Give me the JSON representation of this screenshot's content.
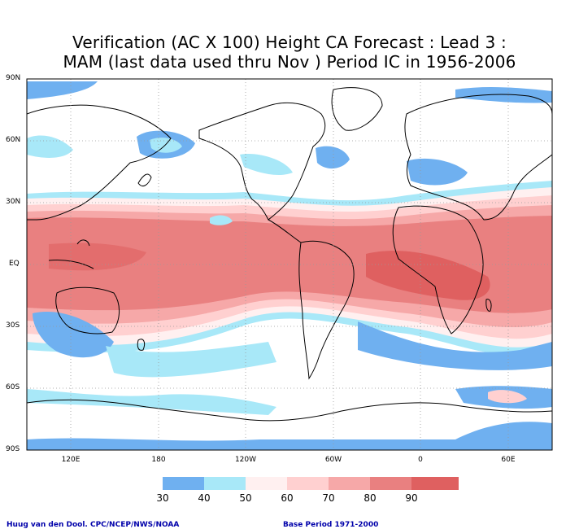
{
  "title": {
    "line1": "Verification (AC X 100) Height CA Forecast : Lead 3 :",
    "line2": "MAM (last data used thru Nov ) Period IC in 1956-2006"
  },
  "latitude_labels": [
    "90N",
    "60N",
    "30N",
    "EQ",
    "30S",
    "60S",
    "90S"
  ],
  "longitude_labels": [
    "120E",
    "180",
    "120W",
    "60W",
    "0",
    "60E"
  ],
  "colorbar": {
    "labels": [
      "30",
      "40",
      "50",
      "60",
      "70",
      "80",
      "90"
    ],
    "colors": [
      "#6fb0f0",
      "#a8e8f8",
      "#fff0f0",
      "#ffd0d0",
      "#f6a8a8",
      "#e98080",
      "#df6060"
    ]
  },
  "footer": {
    "left": "Huug van den Dool. CPC/NCEP/NWS/NOAA",
    "right": "Base Period 1971-2000"
  }
}
